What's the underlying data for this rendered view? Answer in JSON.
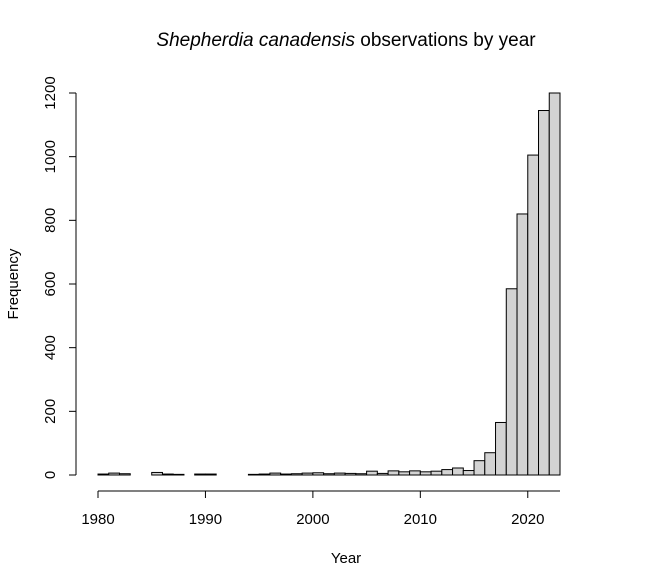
{
  "chart_data": {
    "type": "bar",
    "title_italic": "Shepherdia canadensis",
    "title_rest": " observations by year",
    "xlabel": "Year",
    "ylabel": "Frequency",
    "bin_start": 1980,
    "bin_width": 1,
    "xlim": [
      1980,
      2023
    ],
    "ylim": [
      0,
      1200
    ],
    "x_ticks": [
      1980,
      1990,
      2000,
      2010,
      2020
    ],
    "y_ticks": [
      0,
      200,
      400,
      600,
      800,
      1000,
      1200
    ],
    "values": [
      3,
      6,
      4,
      0,
      0,
      8,
      3,
      2,
      0,
      3,
      3,
      0,
      0,
      0,
      2,
      3,
      6,
      3,
      4,
      6,
      7,
      4,
      6,
      5,
      4,
      12,
      5,
      13,
      10,
      13,
      10,
      12,
      17,
      22,
      14,
      45,
      70,
      165,
      585,
      820,
      1005,
      1145,
      1200
    ],
    "bar_fill": "#d3d3d3",
    "bar_stroke": "#000000",
    "grid": false
  }
}
